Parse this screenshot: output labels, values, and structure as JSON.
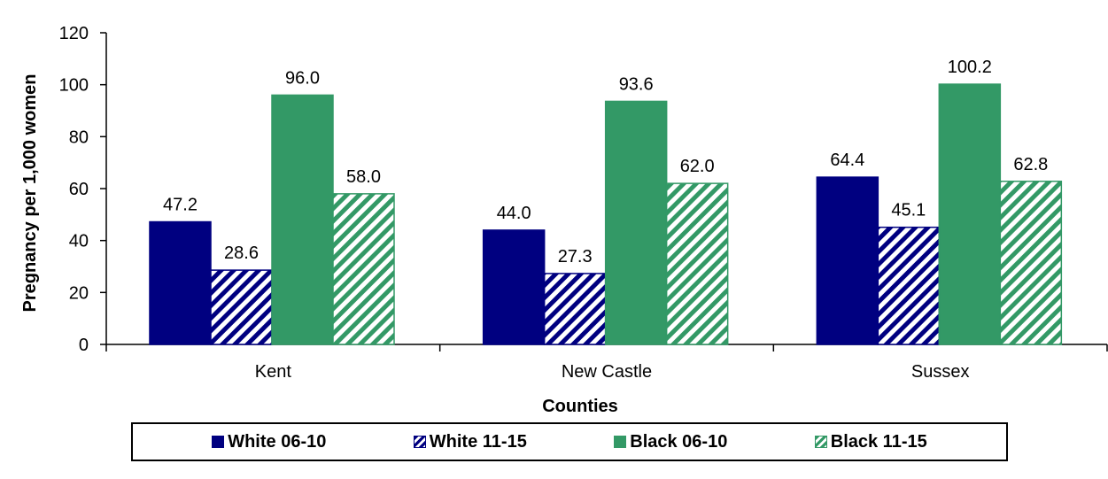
{
  "chart_data": {
    "type": "bar",
    "categories": [
      "Kent",
      "New Castle",
      "Sussex"
    ],
    "series": [
      {
        "name": "White 06-10",
        "values": [
          47.2,
          44.0,
          64.4
        ],
        "color": "#000080",
        "pattern": "solid"
      },
      {
        "name": "White 11-15",
        "values": [
          28.6,
          27.3,
          45.1
        ],
        "color": "#000080",
        "pattern": "hatch"
      },
      {
        "name": "Black 06-10",
        "values": [
          96.0,
          93.6,
          100.2
        ],
        "color": "#339966",
        "pattern": "solid"
      },
      {
        "name": "Black 11-15",
        "values": [
          58.0,
          62.0,
          62.8
        ],
        "color": "#339966",
        "pattern": "hatch"
      }
    ],
    "data_labels": [
      [
        "47.2",
        "44.0",
        "64.4"
      ],
      [
        "28.6",
        "27.3",
        "45.1"
      ],
      [
        "96.0",
        "93.6",
        "100.2"
      ],
      [
        "58.0",
        "62.0",
        "62.8"
      ]
    ],
    "xlabel": "Counties",
    "ylabel": "Pregnancy per 1,000 women",
    "ylim": [
      0,
      120
    ],
    "yticks": [
      0,
      20,
      40,
      60,
      80,
      100,
      120
    ],
    "grid": false,
    "legend_position": "bottom"
  }
}
